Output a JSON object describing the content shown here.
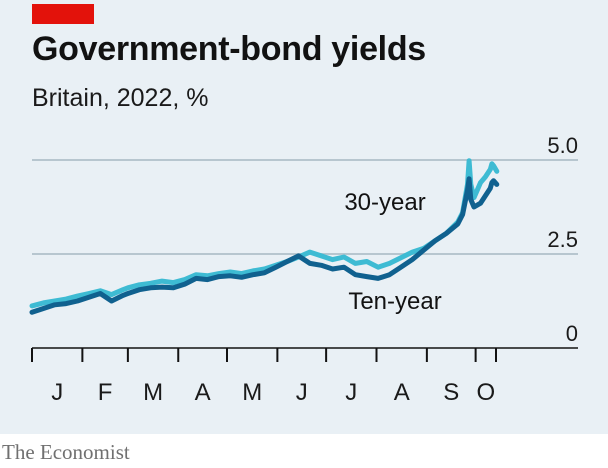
{
  "header": {
    "title": "Government-bond yields",
    "subtitle": "Britain, 2022, %"
  },
  "footer": {
    "source": "The Economist"
  },
  "colors": {
    "accent_tag": "#e3120b",
    "thirty_year": "#3ebbd3",
    "ten_year": "#10618f",
    "gridline": "#b7c6cf",
    "axis": "#121212",
    "background": "#e9f0f5"
  },
  "chart_data": {
    "type": "line",
    "title": "Government-bond yields",
    "subtitle": "Britain, 2022, %",
    "xlabel": "",
    "ylabel": "",
    "x_range": [
      "2022-01-01",
      "2022-10-16"
    ],
    "ylim": [
      0,
      5.0
    ],
    "y_ticks": [
      {
        "value": 0,
        "label": "0"
      },
      {
        "value": 2.5,
        "label": "2.5"
      },
      {
        "value": 5.0,
        "label": "5.0"
      }
    ],
    "x_ticks": [
      "J",
      "F",
      "M",
      "A",
      "M",
      "J",
      "J",
      "A",
      "S",
      "O"
    ],
    "grid": true,
    "legend": "inline labels",
    "series": [
      {
        "name": "30-year",
        "x": [
          "2022-01-01",
          "2022-01-08",
          "2022-01-15",
          "2022-01-22",
          "2022-01-29",
          "2022-02-05",
          "2022-02-12",
          "2022-02-19",
          "2022-02-26",
          "2022-03-01",
          "2022-03-08",
          "2022-03-15",
          "2022-03-22",
          "2022-03-29",
          "2022-04-05",
          "2022-04-12",
          "2022-04-19",
          "2022-04-26",
          "2022-05-03",
          "2022-05-10",
          "2022-05-17",
          "2022-05-24",
          "2022-05-31",
          "2022-06-07",
          "2022-06-14",
          "2022-06-21",
          "2022-06-28",
          "2022-07-05",
          "2022-07-12",
          "2022-07-19",
          "2022-07-26",
          "2022-08-02",
          "2022-08-09",
          "2022-08-16",
          "2022-08-23",
          "2022-08-30",
          "2022-09-06",
          "2022-09-13",
          "2022-09-20",
          "2022-09-23",
          "2022-09-26",
          "2022-09-27",
          "2022-09-28",
          "2022-09-30",
          "2022-10-04",
          "2022-10-07",
          "2022-10-10",
          "2022-10-11",
          "2022-10-12",
          "2022-10-14"
        ],
        "values": [
          1.12,
          1.2,
          1.25,
          1.3,
          1.38,
          1.45,
          1.52,
          1.42,
          1.55,
          1.6,
          1.68,
          1.72,
          1.78,
          1.74,
          1.82,
          1.95,
          1.92,
          1.98,
          2.02,
          1.98,
          2.05,
          2.1,
          2.2,
          2.3,
          2.42,
          2.55,
          2.45,
          2.35,
          2.42,
          2.25,
          2.3,
          2.15,
          2.25,
          2.4,
          2.55,
          2.65,
          2.85,
          3.05,
          3.35,
          3.6,
          4.35,
          4.98,
          4.35,
          4.0,
          4.4,
          4.55,
          4.75,
          4.9,
          4.85,
          4.7
        ]
      },
      {
        "name": "Ten-year",
        "x": [
          "2022-01-01",
          "2022-01-08",
          "2022-01-15",
          "2022-01-22",
          "2022-01-29",
          "2022-02-05",
          "2022-02-12",
          "2022-02-19",
          "2022-02-26",
          "2022-03-01",
          "2022-03-08",
          "2022-03-15",
          "2022-03-22",
          "2022-03-29",
          "2022-04-05",
          "2022-04-12",
          "2022-04-19",
          "2022-04-26",
          "2022-05-03",
          "2022-05-10",
          "2022-05-17",
          "2022-05-24",
          "2022-05-31",
          "2022-06-07",
          "2022-06-14",
          "2022-06-21",
          "2022-06-28",
          "2022-07-05",
          "2022-07-12",
          "2022-07-19",
          "2022-07-26",
          "2022-08-02",
          "2022-08-09",
          "2022-08-16",
          "2022-08-23",
          "2022-08-30",
          "2022-09-06",
          "2022-09-13",
          "2022-09-20",
          "2022-09-23",
          "2022-09-26",
          "2022-09-27",
          "2022-09-28",
          "2022-09-30",
          "2022-10-04",
          "2022-10-07",
          "2022-10-10",
          "2022-10-11",
          "2022-10-12",
          "2022-10-14"
        ],
        "values": [
          0.95,
          1.05,
          1.15,
          1.18,
          1.25,
          1.35,
          1.45,
          1.25,
          1.4,
          1.45,
          1.55,
          1.6,
          1.62,
          1.6,
          1.7,
          1.85,
          1.82,
          1.9,
          1.92,
          1.88,
          1.95,
          2.0,
          2.15,
          2.3,
          2.45,
          2.25,
          2.2,
          2.1,
          2.15,
          1.95,
          1.9,
          1.85,
          1.95,
          2.15,
          2.35,
          2.6,
          2.85,
          3.05,
          3.3,
          3.55,
          4.2,
          4.5,
          3.95,
          3.75,
          3.85,
          4.05,
          4.25,
          4.4,
          4.45,
          4.35
        ]
      }
    ]
  }
}
